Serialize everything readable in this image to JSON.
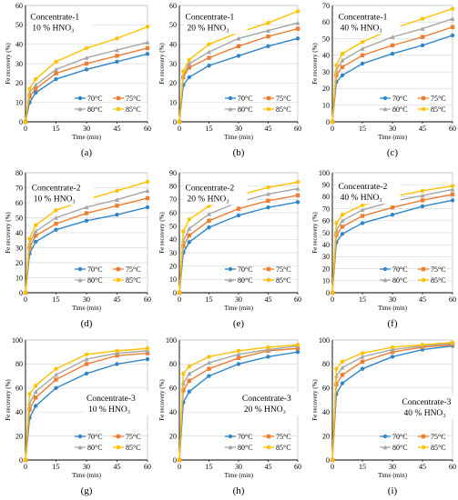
{
  "colors": {
    "t70": "#2e86c9",
    "t75": "#ed7d31",
    "t80": "#a5a5a5",
    "t85": "#ffc000",
    "axis": "#000000",
    "grid": "#d9d9d9"
  },
  "common": {
    "xlabel": "Time (min)",
    "ylabel": "Fe recovery (%)",
    "xticks": [
      0,
      15,
      30,
      45,
      60
    ],
    "x": [
      0,
      2,
      5,
      15,
      30,
      45,
      60
    ],
    "series_names": [
      "70°C",
      "75°C",
      "80°C",
      "85°C"
    ]
  },
  "chart_data": [
    {
      "panel": "(a)",
      "type": "line",
      "concentrate": "Concentrate-1",
      "acid": "10 % HNO₃",
      "ylim": [
        0,
        60
      ],
      "yticks": [
        0,
        10,
        20,
        30,
        40,
        50,
        60
      ],
      "legend": "bottom-right",
      "series": [
        {
          "name": "70°C",
          "values": [
            0,
            10,
            15,
            22,
            27,
            31,
            35
          ]
        },
        {
          "name": "75°C",
          "values": [
            0,
            13,
            17,
            25,
            30,
            34,
            38
          ]
        },
        {
          "name": "80°C",
          "values": [
            0,
            15,
            19,
            27,
            33,
            37,
            41
          ]
        },
        {
          "name": "85°C",
          "values": [
            0,
            17,
            22,
            31,
            38,
            43,
            49
          ]
        }
      ]
    },
    {
      "panel": "(b)",
      "type": "line",
      "concentrate": "Concentrate-1",
      "acid": "20 % HNO₃",
      "ylim": [
        0,
        60
      ],
      "yticks": [
        0,
        10,
        20,
        30,
        40,
        50,
        60
      ],
      "legend": "bottom-right",
      "series": [
        {
          "name": "70°C",
          "values": [
            0,
            19,
            23,
            29,
            34,
            39,
            43
          ]
        },
        {
          "name": "75°C",
          "values": [
            0,
            23,
            28,
            33,
            39,
            44,
            48
          ]
        },
        {
          "name": "80°C",
          "values": [
            0,
            24,
            30,
            36,
            43,
            47,
            51
          ]
        },
        {
          "name": "85°C",
          "values": [
            0,
            26,
            32,
            40,
            46,
            51,
            57
          ]
        }
      ]
    },
    {
      "panel": "(c)",
      "type": "line",
      "concentrate": "Concentrate-1",
      "acid": "40 % HNO₃",
      "ylim": [
        0,
        70
      ],
      "yticks": [
        0,
        10,
        20,
        30,
        40,
        50,
        60,
        70
      ],
      "legend": "bottom-right",
      "series": [
        {
          "name": "70°C",
          "values": [
            0,
            24,
            28,
            35,
            41,
            46,
            52
          ]
        },
        {
          "name": "75°C",
          "values": [
            0,
            28,
            33,
            40,
            46,
            51,
            57
          ]
        },
        {
          "name": "80°C",
          "values": [
            0,
            31,
            37,
            44,
            51,
            56,
            62
          ]
        },
        {
          "name": "85°C",
          "values": [
            0,
            34,
            41,
            48,
            56,
            62,
            68
          ]
        }
      ]
    },
    {
      "panel": "(d)",
      "type": "line",
      "concentrate": "Concentrate-2",
      "acid": "10 % HNO₃",
      "ylim": [
        0,
        80
      ],
      "yticks": [
        0,
        10,
        20,
        30,
        40,
        50,
        60,
        70,
        80
      ],
      "legend": "bottom-right",
      "series": [
        {
          "name": "70°C",
          "values": [
            0,
            26,
            34,
            42,
            48,
            52,
            57
          ]
        },
        {
          "name": "75°C",
          "values": [
            0,
            30,
            38,
            46,
            53,
            58,
            63
          ]
        },
        {
          "name": "80°C",
          "values": [
            0,
            33,
            41,
            50,
            57,
            62,
            68
          ]
        },
        {
          "name": "85°C",
          "values": [
            0,
            36,
            45,
            55,
            62,
            68,
            74
          ]
        }
      ]
    },
    {
      "panel": "(e)",
      "type": "line",
      "concentrate": "Concentrate-2",
      "acid": "20 % HNO₃",
      "ylim": [
        0,
        90
      ],
      "yticks": [
        0,
        10,
        20,
        30,
        40,
        50,
        60,
        70,
        80,
        90
      ],
      "legend": "bottom-right",
      "series": [
        {
          "name": "70°C",
          "values": [
            0,
            30,
            38,
            49,
            58,
            64,
            68
          ]
        },
        {
          "name": "75°C",
          "values": [
            0,
            35,
            43,
            54,
            63,
            69,
            73
          ]
        },
        {
          "name": "80°C",
          "values": [
            0,
            39,
            48,
            59,
            68,
            74,
            78
          ]
        },
        {
          "name": "85°C",
          "values": [
            0,
            46,
            55,
            65,
            73,
            79,
            83
          ]
        }
      ]
    },
    {
      "panel": "(f)",
      "type": "line",
      "concentrate": "Concentrate-2",
      "acid": "40 % HNO₃",
      "ylim": [
        0,
        100
      ],
      "yticks": [
        0,
        10,
        20,
        30,
        40,
        50,
        60,
        70,
        80,
        90,
        100
      ],
      "legend": "bottom-right",
      "series": [
        {
          "name": "70°C",
          "values": [
            0,
            42,
            49,
            58,
            65,
            72,
            77
          ]
        },
        {
          "name": "75°C",
          "values": [
            0,
            48,
            55,
            64,
            71,
            77,
            82
          ]
        },
        {
          "name": "80°C",
          "values": [
            0,
            52,
            60,
            69,
            76,
            81,
            86
          ]
        },
        {
          "name": "85°C",
          "values": [
            0,
            58,
            65,
            73,
            80,
            85,
            89
          ]
        }
      ]
    },
    {
      "panel": "(g)",
      "type": "line",
      "concentrate": "Concentrate-3",
      "acid": "10 % HNO₃",
      "ylim": [
        0,
        100
      ],
      "yticks": [
        0,
        20,
        40,
        60,
        80,
        100
      ],
      "legend": "bottom-right",
      "series": [
        {
          "name": "70°C",
          "values": [
            0,
            35,
            45,
            60,
            72,
            80,
            84
          ]
        },
        {
          "name": "75°C",
          "values": [
            0,
            42,
            52,
            67,
            80,
            87,
            89
          ]
        },
        {
          "name": "80°C",
          "values": [
            0,
            47,
            57,
            71,
            84,
            89,
            91
          ]
        },
        {
          "name": "85°C",
          "values": [
            0,
            55,
            62,
            76,
            88,
            91,
            93
          ]
        }
      ]
    },
    {
      "panel": "(h)",
      "type": "line",
      "concentrate": "Concentrate-3",
      "acid": "20 % HNO₃",
      "ylim": [
        0,
        100
      ],
      "yticks": [
        0,
        20,
        40,
        60,
        80,
        100
      ],
      "legend": "bottom-right",
      "series": [
        {
          "name": "70°C",
          "values": [
            0,
            48,
            57,
            70,
            80,
            86,
            90
          ]
        },
        {
          "name": "75°C",
          "values": [
            0,
            58,
            66,
            76,
            85,
            91,
            93
          ]
        },
        {
          "name": "80°C",
          "values": [
            0,
            64,
            72,
            81,
            88,
            92,
            95
          ]
        },
        {
          "name": "85°C",
          "values": [
            0,
            72,
            78,
            86,
            91,
            94,
            96
          ]
        }
      ]
    },
    {
      "panel": "(i)",
      "type": "line",
      "concentrate": "Concentrate-3",
      "acid": "40 % HNO₃",
      "ylim": [
        0,
        100
      ],
      "yticks": [
        0,
        20,
        40,
        60,
        80,
        100
      ],
      "legend": "bottom-right",
      "series": [
        {
          "name": "70°C",
          "values": [
            0,
            55,
            64,
            76,
            86,
            92,
            95
          ]
        },
        {
          "name": "75°C",
          "values": [
            0,
            63,
            71,
            82,
            90,
            94,
            96
          ]
        },
        {
          "name": "80°C",
          "values": [
            0,
            70,
            77,
            86,
            92,
            95,
            97
          ]
        },
        {
          "name": "85°C",
          "values": [
            0,
            76,
            82,
            89,
            94,
            96,
            98
          ]
        }
      ]
    }
  ]
}
